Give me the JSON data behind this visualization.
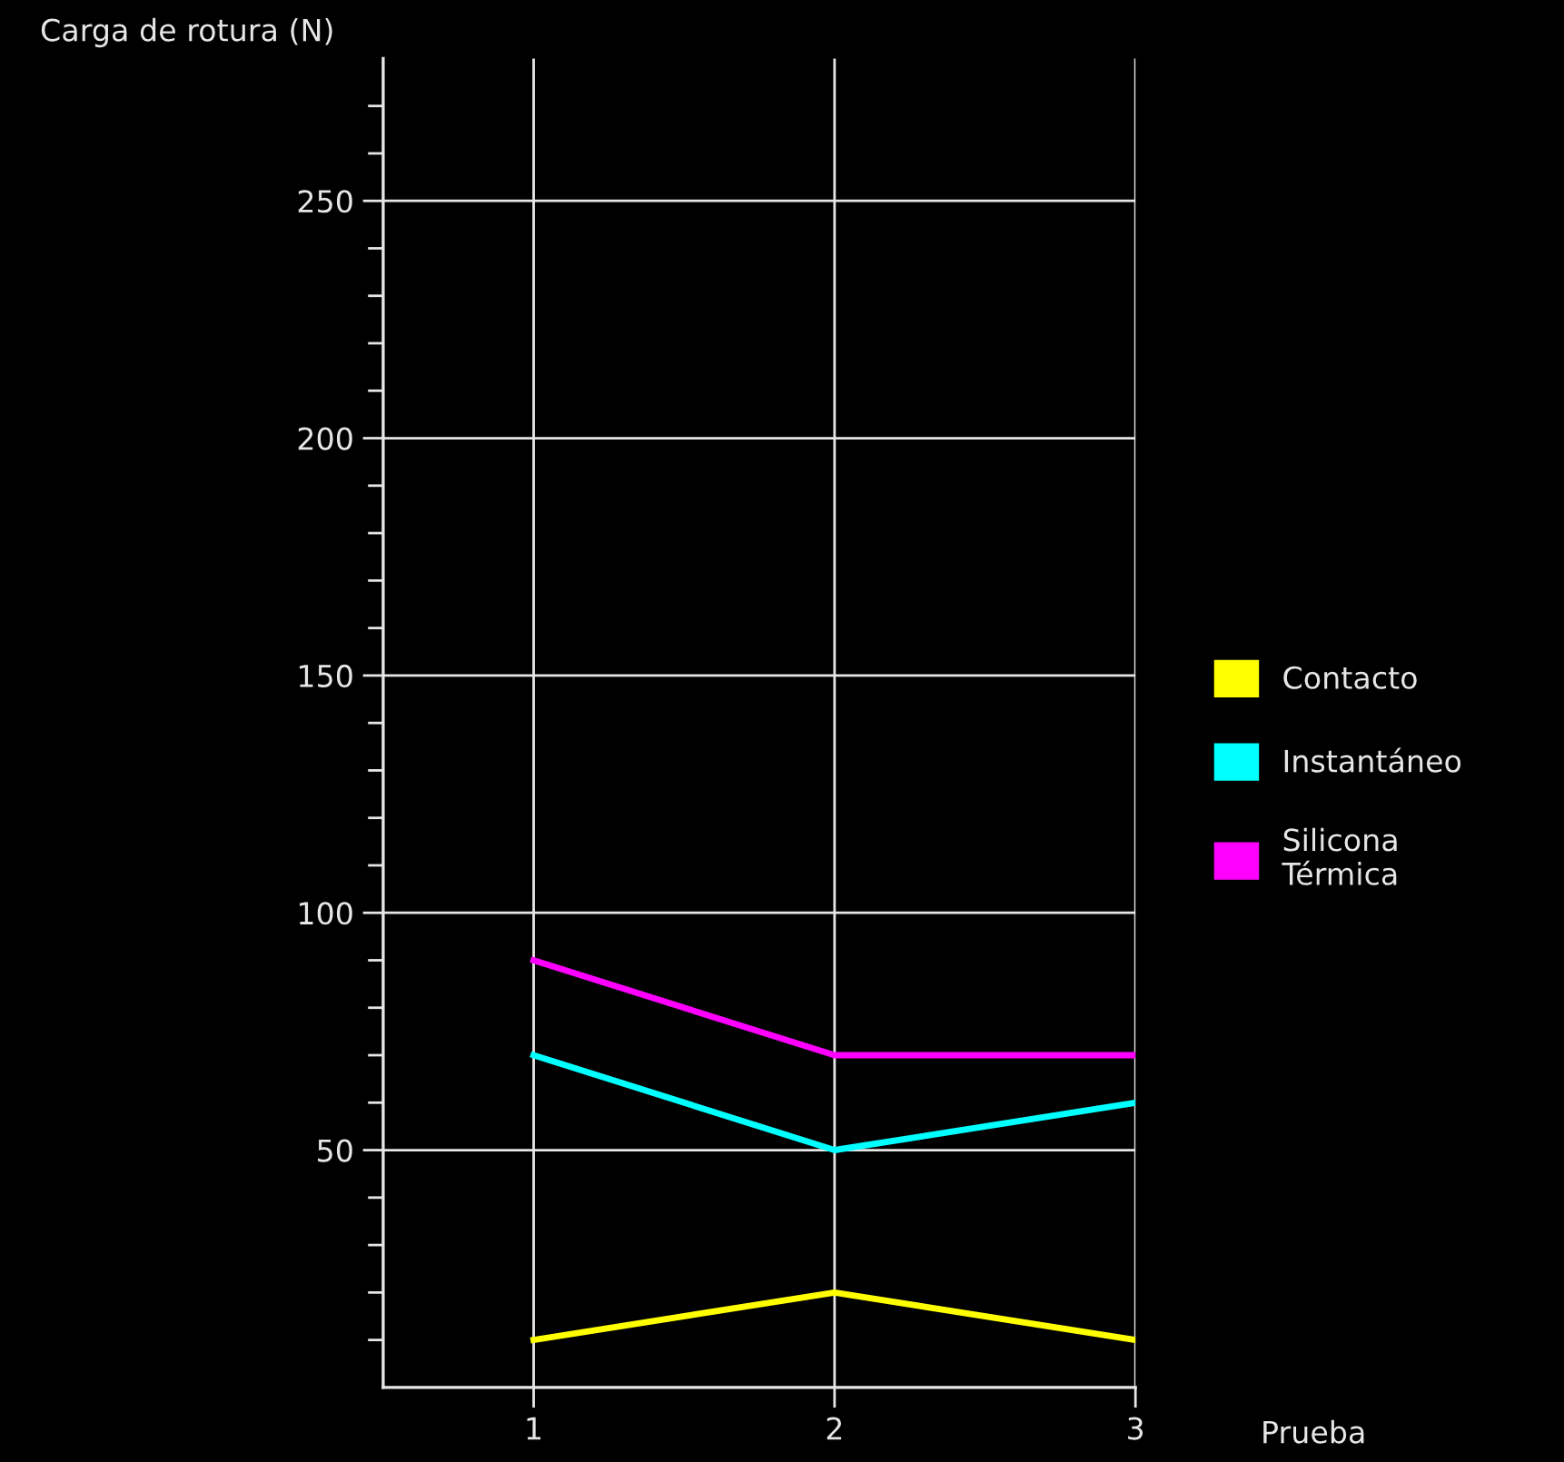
{
  "chart_data": {
    "type": "line",
    "ylabel": "Carga de rotura (N)",
    "xlabel": "Prueba",
    "x": [
      1,
      2,
      3
    ],
    "series": [
      {
        "name": "Contacto",
        "color": "#ffff00",
        "values": [
          10,
          20,
          10
        ]
      },
      {
        "name": "Instantáneo",
        "color": "#00ffff",
        "values": [
          70,
          50,
          60
        ]
      },
      {
        "name": "Silicona\nTérmica",
        "color": "#ff00ff",
        "values": [
          90,
          70,
          70
        ]
      }
    ],
    "xlim": [
      0.5,
      3
    ],
    "xticks": [
      1,
      2,
      3
    ],
    "ylim": [
      0,
      280
    ],
    "yticks": [
      {
        "value": 10,
        "label": null
      },
      {
        "value": 20,
        "label": null
      },
      {
        "value": 30,
        "label": null
      },
      {
        "value": 40,
        "label": null
      },
      50,
      {
        "value": 60,
        "label": null
      },
      {
        "value": 70,
        "label": null
      },
      {
        "value": 80,
        "label": null
      },
      {
        "value": 90,
        "label": null
      },
      100,
      {
        "value": 110,
        "label": null
      },
      {
        "value": 120,
        "label": null
      },
      {
        "value": 130,
        "label": null
      },
      {
        "value": 140,
        "label": null
      },
      150,
      {
        "value": 160,
        "label": null
      },
      {
        "value": 170,
        "label": null
      },
      {
        "value": 180,
        "label": null
      },
      {
        "value": 190,
        "label": null
      },
      200,
      {
        "value": 210,
        "label": null
      },
      {
        "value": 220,
        "label": null
      },
      {
        "value": 230,
        "label": null
      },
      {
        "value": 240,
        "label": null
      },
      250,
      {
        "value": 260,
        "label": null
      },
      {
        "value": 270,
        "label": null
      }
    ],
    "grid": true,
    "legend": "right",
    "marker": "none",
    "line_style": "solid"
  }
}
